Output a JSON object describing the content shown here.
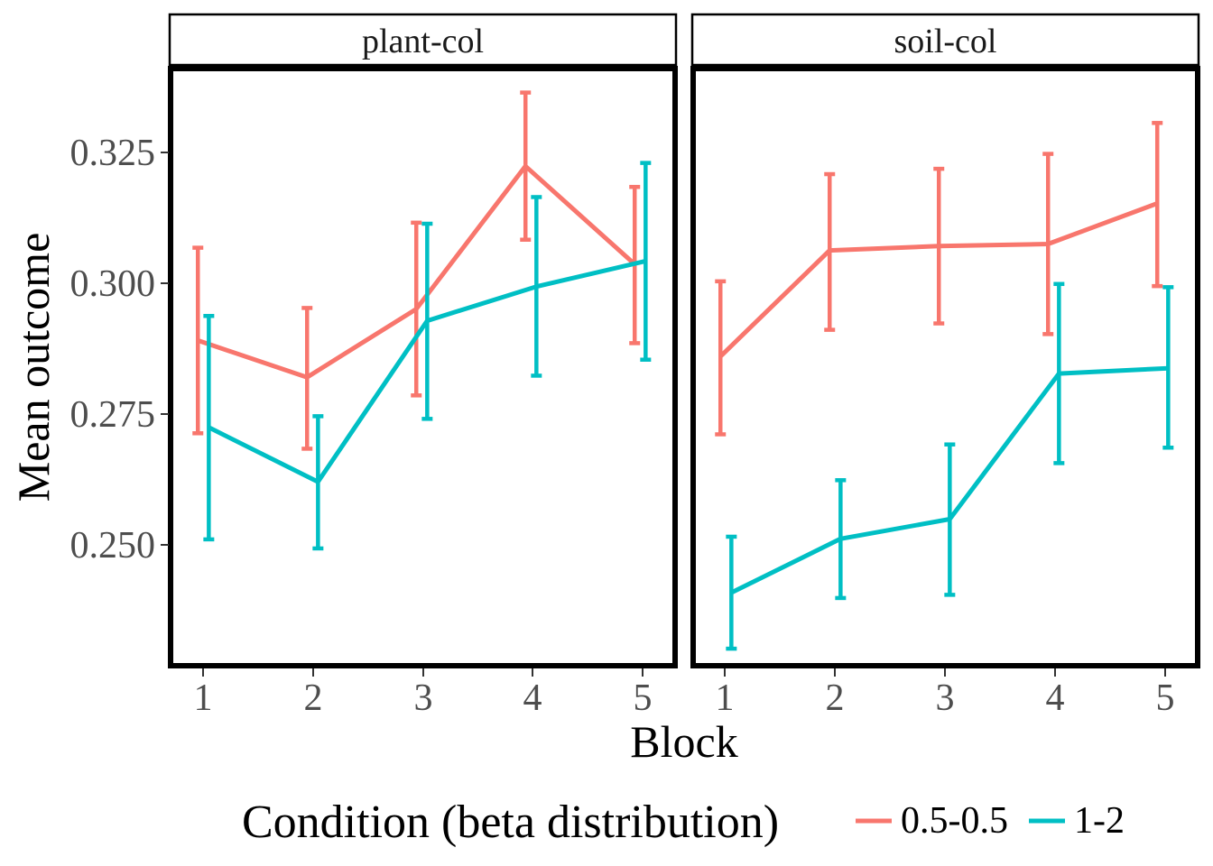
{
  "chart_data": {
    "type": "line",
    "subtype": "faceted line chart with error bars",
    "xlabel": "Block",
    "ylabel": "Mean outcome",
    "x": [
      1,
      2,
      3,
      4,
      5
    ],
    "x_tick_labels": [
      "1",
      "2",
      "3",
      "4",
      "5"
    ],
    "xlim": [
      0.7,
      5.32
    ],
    "ylim": [
      0.2285,
      0.3405
    ],
    "y_ticks": [
      0.25,
      0.275,
      0.3,
      0.325
    ],
    "y_tick_labels": [
      "0.250",
      "0.275",
      "0.300",
      "0.325"
    ],
    "grid": false,
    "legend": {
      "title": "Condition (beta distribution)",
      "position": "bottom",
      "entries": [
        {
          "label": "0.5-0.5",
          "color": "#F8766D"
        },
        {
          "label": "1-2",
          "color": "#00BFC4"
        }
      ]
    },
    "facets": [
      {
        "label": "plant-col",
        "series": [
          {
            "name": "0.5-0.5",
            "color": "#F8766D",
            "dodge": -0.05,
            "values": [
              0.2895,
              0.2826,
              0.2954,
              0.3222,
              0.3038
            ],
            "lower": [
              0.2721,
              0.2692,
              0.2792,
              0.3084,
              0.289
            ],
            "upper": [
              0.3069,
              0.2956,
              0.3116,
              0.336,
              0.3183
            ]
          },
          {
            "name": "1-2",
            "color": "#00BFC4",
            "dodge": 0.05,
            "values": [
              0.2732,
              0.263,
              0.2932,
              0.2996,
              0.3044
            ],
            "lower": [
              0.2522,
              0.2505,
              0.2748,
              0.2829,
              0.2859
            ],
            "upper": [
              0.2941,
              0.2753,
              0.3114,
              0.3164,
              0.3228
            ]
          }
        ]
      },
      {
        "label": "soil-col",
        "series": [
          {
            "name": "0.5-0.5",
            "color": "#F8766D",
            "dodge": -0.05,
            "values": [
              0.2865,
              0.3064,
              0.3072,
              0.3076,
              0.3152
            ],
            "lower": [
              0.2719,
              0.2915,
              0.2927,
              0.2907,
              0.2997
            ],
            "upper": [
              0.3006,
              0.3207,
              0.3217,
              0.3245,
              0.3303
            ]
          },
          {
            "name": "1-2",
            "color": "#00BFC4",
            "dodge": 0.05,
            "values": [
              0.2422,
              0.2523,
              0.256,
              0.2833,
              0.2843
            ],
            "lower": [
              0.2317,
              0.2412,
              0.2418,
              0.2665,
              0.2694
            ],
            "upper": [
              0.2527,
              0.2633,
              0.27,
              0.3001,
              0.2995
            ]
          }
        ]
      }
    ]
  }
}
